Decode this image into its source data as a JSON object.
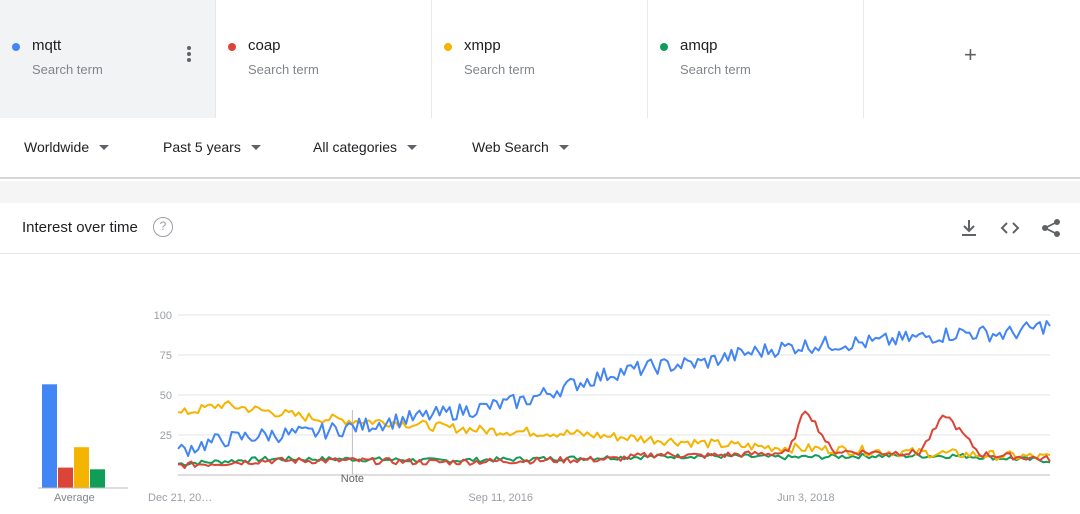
{
  "terms": [
    {
      "name": "mqtt",
      "sub": "Search term",
      "color": "#4285f4"
    },
    {
      "name": "coap",
      "sub": "Search term",
      "color": "#db4437"
    },
    {
      "name": "xmpp",
      "sub": "Search term",
      "color": "#f4b400"
    },
    {
      "name": "amqp",
      "sub": "Search term",
      "color": "#0f9d58"
    }
  ],
  "add_icon": "+",
  "filters": {
    "region": "Worldwide",
    "time": "Past 5 years",
    "category": "All categories",
    "search_type": "Web Search"
  },
  "card": {
    "title": "Interest over time",
    "help_icon": "?",
    "average_label": "Average",
    "note_label": "Note"
  },
  "icons": [
    "more-vert-icon",
    "add-icon",
    "help-icon",
    "download-icon",
    "embed-icon",
    "share-icon"
  ],
  "chart_data": {
    "type": "line",
    "x_ticks": [
      "Dec 21, 20…",
      "Sep 11, 2016",
      "Jun 3, 2018"
    ],
    "ylim": [
      0,
      100
    ],
    "y_ticks": [
      25,
      50,
      75,
      100
    ],
    "grid": true,
    "averages": [
      {
        "name": "mqtt",
        "value": 61
      },
      {
        "name": "coap",
        "value": 12
      },
      {
        "name": "xmpp",
        "value": 24
      },
      {
        "name": "amqp",
        "value": 11
      }
    ],
    "series": [
      {
        "name": "mqtt",
        "color": "#4285f4",
        "points": [
          [
            0,
            15
          ],
          [
            0.05,
            22
          ],
          [
            0.1,
            25
          ],
          [
            0.15,
            26
          ],
          [
            0.2,
            30
          ],
          [
            0.25,
            34
          ],
          [
            0.3,
            38
          ],
          [
            0.35,
            42
          ],
          [
            0.4,
            47
          ],
          [
            0.45,
            56
          ],
          [
            0.5,
            64
          ],
          [
            0.55,
            68
          ],
          [
            0.6,
            70
          ],
          [
            0.65,
            76
          ],
          [
            0.7,
            80
          ],
          [
            0.75,
            82
          ],
          [
            0.8,
            83
          ],
          [
            0.85,
            86
          ],
          [
            0.9,
            89
          ],
          [
            0.95,
            88
          ],
          [
            1,
            94
          ]
        ]
      },
      {
        "name": "coap",
        "color": "#db4437",
        "points": [
          [
            0,
            6
          ],
          [
            0.1,
            9
          ],
          [
            0.2,
            9
          ],
          [
            0.3,
            8
          ],
          [
            0.4,
            9
          ],
          [
            0.5,
            10
          ],
          [
            0.55,
            13
          ],
          [
            0.6,
            12
          ],
          [
            0.65,
            13
          ],
          [
            0.7,
            14
          ],
          [
            0.72,
            42
          ],
          [
            0.75,
            15
          ],
          [
            0.8,
            14
          ],
          [
            0.85,
            14
          ],
          [
            0.88,
            38
          ],
          [
            0.92,
            13
          ],
          [
            1,
            10
          ]
        ]
      },
      {
        "name": "xmpp",
        "color": "#f4b400",
        "points": [
          [
            0,
            38
          ],
          [
            0.05,
            44
          ],
          [
            0.1,
            40
          ],
          [
            0.15,
            36
          ],
          [
            0.2,
            34
          ],
          [
            0.25,
            33
          ],
          [
            0.3,
            30
          ],
          [
            0.35,
            28
          ],
          [
            0.4,
            27
          ],
          [
            0.45,
            26
          ],
          [
            0.5,
            24
          ],
          [
            0.55,
            22
          ],
          [
            0.6,
            20
          ],
          [
            0.65,
            18
          ],
          [
            0.7,
            17
          ],
          [
            0.75,
            16
          ],
          [
            0.8,
            15
          ],
          [
            0.85,
            14
          ],
          [
            0.9,
            13
          ],
          [
            0.95,
            12
          ],
          [
            1,
            11
          ]
        ]
      },
      {
        "name": "amqp",
        "color": "#0f9d58",
        "points": [
          [
            0,
            7
          ],
          [
            0.1,
            10
          ],
          [
            0.2,
            10
          ],
          [
            0.3,
            9
          ],
          [
            0.4,
            10
          ],
          [
            0.5,
            11
          ],
          [
            0.6,
            12
          ],
          [
            0.7,
            11
          ],
          [
            0.8,
            12
          ],
          [
            0.9,
            12
          ],
          [
            1,
            9
          ]
        ]
      }
    ]
  }
}
